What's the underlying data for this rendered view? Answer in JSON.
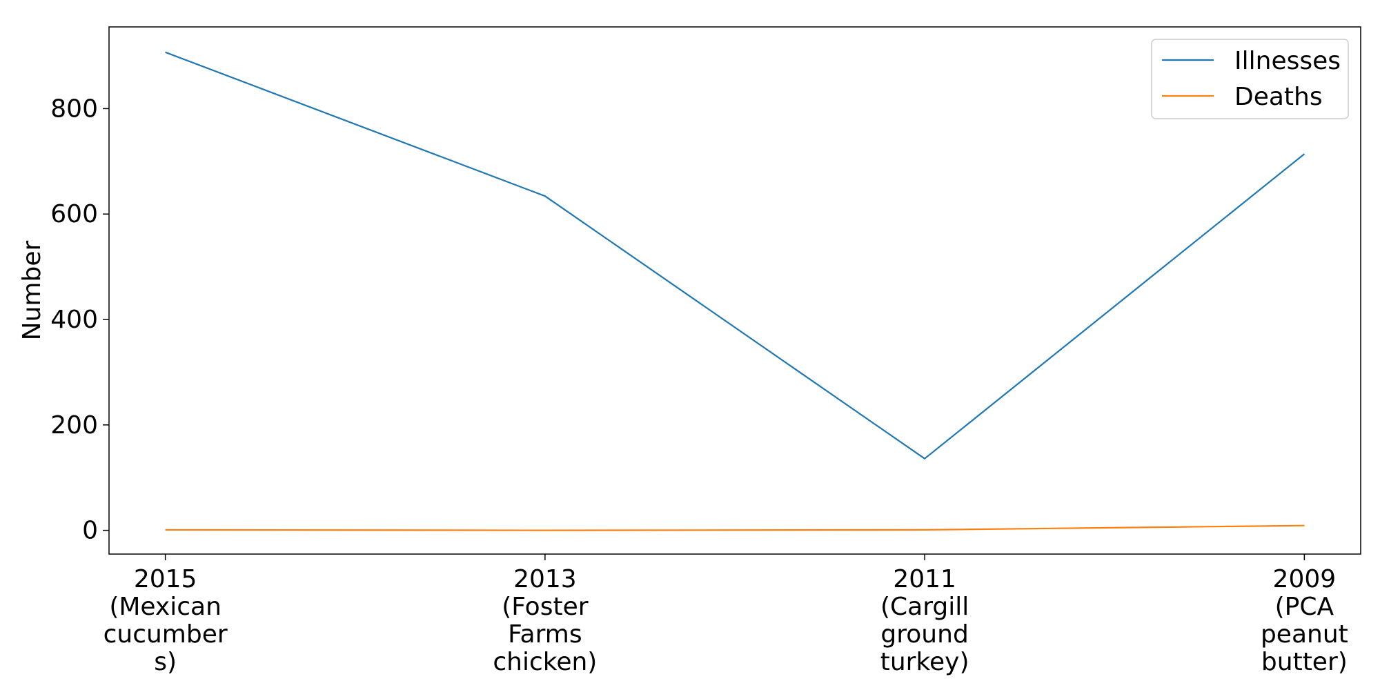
{
  "chart_data": {
    "type": "line",
    "title": "",
    "xlabel": "",
    "ylabel": "Number",
    "categories": [
      [
        "2015",
        "(Mexican",
        "cucumber",
        "s)"
      ],
      [
        "2013",
        "(Foster",
        "Farms",
        "chicken)"
      ],
      [
        "2011",
        "(Cargill",
        "ground",
        "turkey)"
      ],
      [
        "2009",
        "(PCA",
        "peanut",
        "butter)"
      ]
    ],
    "ylim": [
      -45,
      955
    ],
    "yticks": [
      0,
      200,
      400,
      600,
      800
    ],
    "series": [
      {
        "name": "Illnesses",
        "color": "#1f77b4",
        "values": [
          907,
          634,
          136,
          714
        ]
      },
      {
        "name": "Deaths",
        "color": "#ff7f0e",
        "values": [
          1,
          0,
          1,
          9
        ]
      }
    ],
    "legend": {
      "placement": "top-right"
    },
    "grid": false
  }
}
